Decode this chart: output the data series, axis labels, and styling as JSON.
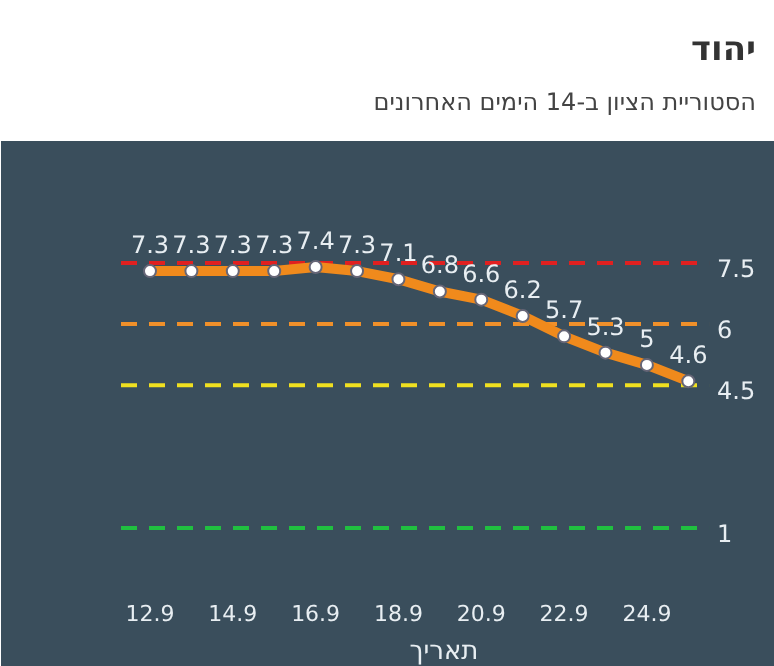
{
  "chart_data": {
    "type": "line",
    "title": "יהוד",
    "subtitle": "הסטוריית הציון ב-14 הימים האחרונים",
    "xlabel": "תאריך",
    "categories": [
      "12.9",
      null,
      "14.9",
      null,
      "16.9",
      null,
      "18.9",
      null,
      "20.9",
      null,
      "22.9",
      null,
      "24.9",
      null
    ],
    "series": [
      {
        "color": "#f08a1c",
        "values": [
          7.3,
          7.3,
          7.3,
          7.3,
          7.4,
          7.3,
          7.1,
          6.8,
          6.6,
          6.2,
          5.7,
          5.3,
          5,
          4.6
        ]
      }
    ],
    "data_labels": true,
    "marker": "circle",
    "ylim": [
      -0.3,
      10
    ],
    "tick_labels": "x",
    "grid": false,
    "ref_lines": [
      {
        "axis": "y",
        "value": 7.5,
        "label": "7.5",
        "color": "#e02020",
        "line_style": "dashed"
      },
      {
        "axis": "y",
        "value": 6,
        "label": "6",
        "color": "#f0902a",
        "line_style": "dashed"
      },
      {
        "axis": "y",
        "value": 4.5,
        "label": "4.5",
        "color": "#f0e020",
        "line_style": "dashed"
      },
      {
        "axis": "y",
        "value": 1,
        "label": "1",
        "color": "#20c040",
        "line_style": "dashed"
      }
    ]
  }
}
